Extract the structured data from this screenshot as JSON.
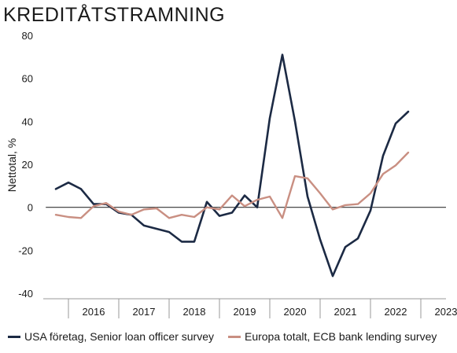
{
  "chart_data": {
    "type": "line",
    "title": "KREDITÅTSTRAMNING",
    "ylabel": "Nettotal, %",
    "xlabel": "",
    "ylim": [
      -40,
      80
    ],
    "yticks": [
      -40,
      -20,
      0,
      20,
      40,
      60,
      80
    ],
    "xlim": [
      2015.5,
      2023.5
    ],
    "xticks": [
      {
        "label": "2016",
        "year": 2016
      },
      {
        "label": "2017",
        "year": 2017
      },
      {
        "label": "2018",
        "year": 2018
      },
      {
        "label": "2019",
        "year": 2019
      },
      {
        "label": "2020",
        "year": 2020
      },
      {
        "label": "2021",
        "year": 2021
      },
      {
        "label": "2022",
        "year": 2022
      },
      {
        "label": "2023",
        "year": 2023
      }
    ],
    "zero_line": true,
    "grid": false,
    "legend_position": "bottom",
    "series": [
      {
        "name": "USA företag, Senior loan officer survey",
        "color": "#1c2a44",
        "x": [
          "2015Q4",
          "2016Q1",
          "2016Q2",
          "2016Q3",
          "2016Q4",
          "2017Q1",
          "2017Q2",
          "2017Q3",
          "2017Q4",
          "2018Q1",
          "2018Q2",
          "2018Q3",
          "2018Q4",
          "2019Q1",
          "2019Q2",
          "2019Q3",
          "2019Q4",
          "2020Q1",
          "2020Q2",
          "2020Q3",
          "2020Q4",
          "2021Q1",
          "2021Q2",
          "2021Q3",
          "2021Q4",
          "2022Q1",
          "2022Q2",
          "2022Q3",
          "2022Q4",
          "2023Q1"
        ],
        "values": [
          8.5,
          11.5,
          8.5,
          1.5,
          1.5,
          -2.5,
          -3.5,
          -8.5,
          -10,
          -11.5,
          -16,
          -16,
          2.5,
          -4,
          -2.5,
          5.5,
          0,
          41.5,
          71,
          40,
          5,
          -15,
          -32,
          -18.5,
          -14.5,
          -1.5,
          24,
          39,
          44.5,
          null
        ]
      },
      {
        "name": "Europa totalt, ECB bank lending survey",
        "color": "#c98f82",
        "x": [
          "2015Q4",
          "2016Q1",
          "2016Q2",
          "2016Q3",
          "2016Q4",
          "2017Q1",
          "2017Q2",
          "2017Q3",
          "2017Q4",
          "2018Q1",
          "2018Q2",
          "2018Q3",
          "2018Q4",
          "2019Q1",
          "2019Q2",
          "2019Q3",
          "2019Q4",
          "2020Q1",
          "2020Q2",
          "2020Q3",
          "2020Q4",
          "2021Q1",
          "2021Q2",
          "2021Q3",
          "2021Q4",
          "2022Q1",
          "2022Q2",
          "2022Q3",
          "2022Q4",
          "2023Q1"
        ],
        "values": [
          -3.5,
          -4.5,
          -5,
          0.5,
          2,
          -2,
          -3.5,
          -1,
          -0.5,
          -5,
          -3.5,
          -4.5,
          0,
          -1,
          5.5,
          0.5,
          3.5,
          5,
          -5,
          14.5,
          13.5,
          6.5,
          -1,
          1,
          1.5,
          6.5,
          15.5,
          19.5,
          25.5,
          null
        ]
      }
    ]
  }
}
